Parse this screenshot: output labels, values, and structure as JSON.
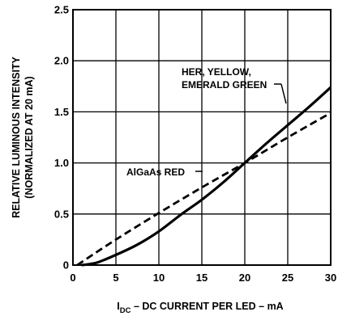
{
  "chart_data": {
    "type": "line",
    "title": "",
    "xlabel_main": "I",
    "xlabel_sub": "DC",
    "xlabel_rest": " – DC CURRENT PER LED – mA",
    "ylabel_line1": "RELATIVE LUMINOUS INTENSITY",
    "ylabel_line2": "(NORMALIZED AT 20 mA)",
    "xlim": [
      0,
      30
    ],
    "ylim": [
      0,
      2.5
    ],
    "x_ticks": [
      0,
      5,
      10,
      15,
      20,
      25,
      30
    ],
    "x_tick_labels": [
      "0",
      "5",
      "10",
      "15",
      "20",
      "25",
      "30"
    ],
    "y_ticks": [
      0,
      0.5,
      1.0,
      1.5,
      2.0,
      2.5
    ],
    "y_tick_labels": [
      "0",
      "0.5",
      "1.0",
      "1.5",
      "2.0",
      "2.5"
    ],
    "grid": true,
    "series": [
      {
        "name": "HER, YELLOW, EMERALD GREEN",
        "style": "solid",
        "color": "#000000",
        "x": [
          1,
          2,
          3,
          5,
          7.5,
          10,
          12.5,
          15,
          17.5,
          20,
          22.5,
          25,
          27.5,
          30
        ],
        "y": [
          0,
          0.01,
          0.03,
          0.1,
          0.2,
          0.33,
          0.49,
          0.64,
          0.81,
          1.0,
          1.19,
          1.37,
          1.55,
          1.74
        ]
      },
      {
        "name": "AlGaAs RED",
        "style": "dashed",
        "color": "#000000",
        "x": [
          0.5,
          5,
          10,
          15,
          20,
          25,
          30
        ],
        "y": [
          0,
          0.25,
          0.51,
          0.76,
          1.0,
          1.25,
          1.49
        ]
      }
    ],
    "annotations": [
      {
        "lines": [
          "HER, YELLOW,",
          "EMERALD GREEN"
        ]
      },
      {
        "lines": [
          "AlGaAs RED"
        ]
      }
    ]
  }
}
